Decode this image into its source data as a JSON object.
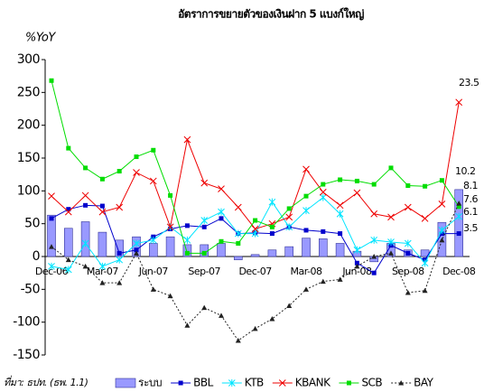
{
  "chart_data": {
    "type": "combo",
    "title": "อัตราการขยายตัวของเงินฝาก 5 แบงก์ใหญ่",
    "y_label": "%YoY",
    "source": "ที่มา: ธปท. (ธพ. 1.1)",
    "categories": [
      "Dec-06",
      null,
      null,
      "Mar-07",
      null,
      null,
      "Jun-07",
      null,
      null,
      "Sep-07",
      null,
      null,
      "Dec-07",
      null,
      null,
      "Mar-08",
      null,
      null,
      "Jun-08",
      null,
      null,
      "Sep-08",
      null,
      null,
      "Dec-08"
    ],
    "ylim": [
      -150,
      300
    ],
    "yticks": [
      -150,
      -100,
      -50,
      0,
      50,
      100,
      150,
      200,
      250,
      300
    ],
    "grid": false,
    "series": [
      {
        "name": "ระบบ",
        "type": "bar",
        "color": "#9999ff",
        "values": [
          63,
          43,
          53,
          37,
          25,
          30,
          20,
          30,
          18,
          18,
          20,
          -5,
          3,
          10,
          15,
          28,
          27,
          20,
          8,
          -8,
          20,
          10,
          10,
          52,
          102
        ]
      },
      {
        "name": "BBL",
        "type": "line",
        "marker": "square",
        "color": "#0000cc",
        "values": [
          58,
          72,
          78,
          77,
          5,
          10,
          30,
          42,
          47,
          45,
          58,
          35,
          36,
          35,
          45,
          40,
          38,
          35,
          -10,
          -25,
          17,
          5,
          -5,
          35,
          35
        ]
      },
      {
        "name": "KTB",
        "type": "line",
        "marker": "star",
        "color": "#00e5ff",
        "values": [
          -15,
          -20,
          20,
          -15,
          -5,
          20,
          25,
          45,
          25,
          55,
          68,
          35,
          35,
          83,
          45,
          70,
          90,
          65,
          10,
          25,
          22,
          20,
          -10,
          40,
          61
        ]
      },
      {
        "name": "KBANK",
        "type": "line",
        "marker": "x",
        "color": "#ee0000",
        "values": [
          92,
          68,
          93,
          68,
          75,
          128,
          115,
          45,
          178,
          112,
          103,
          75,
          42,
          50,
          60,
          133,
          98,
          78,
          97,
          65,
          60,
          75,
          58,
          80,
          235
        ]
      },
      {
        "name": "SCB",
        "type": "line",
        "marker": "square",
        "color": "#00dd00",
        "values": [
          268,
          165,
          135,
          118,
          130,
          152,
          162,
          93,
          5,
          5,
          23,
          20,
          55,
          45,
          73,
          92,
          110,
          117,
          115,
          110,
          135,
          108,
          107,
          116,
          76
        ]
      },
      {
        "name": "BAY",
        "type": "line",
        "marker": "triangle",
        "dash": true,
        "color": "#222222",
        "values": [
          15,
          -5,
          -15,
          -40,
          -40,
          5,
          -50,
          -60,
          -105,
          -78,
          -90,
          -128,
          -110,
          -95,
          -75,
          -50,
          -38,
          -35,
          -15,
          0,
          5,
          -55,
          -52,
          25,
          81
        ]
      }
    ],
    "annotations": [
      "23.5",
      "10.2",
      "8.1",
      "7.6",
      "6.1",
      "3.5"
    ]
  }
}
